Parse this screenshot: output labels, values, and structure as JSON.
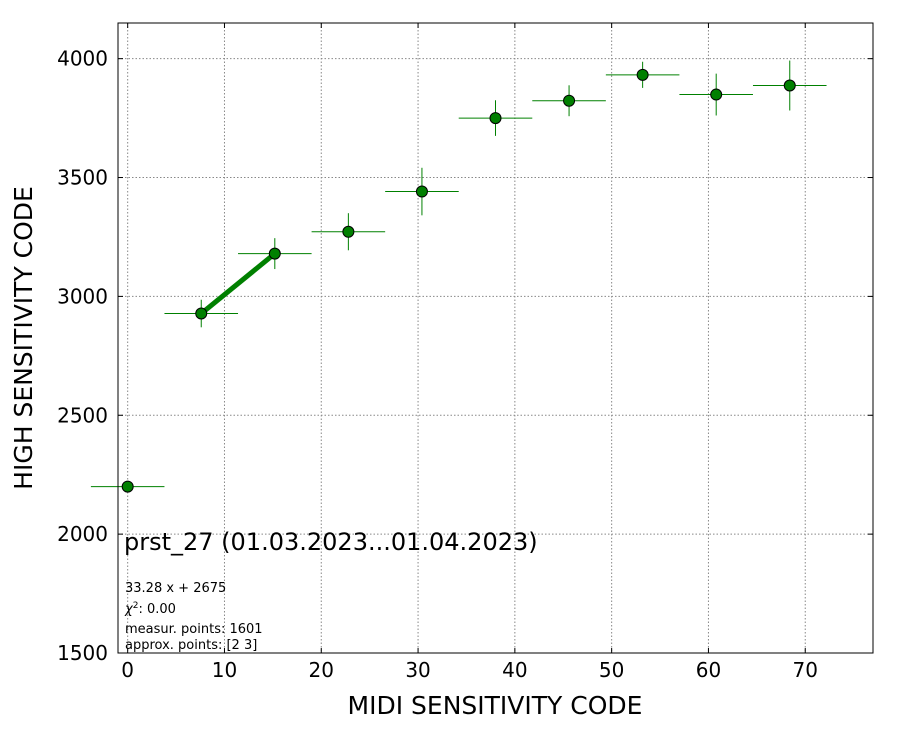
{
  "chart_data": {
    "type": "scatter",
    "xlabel": "MIDI SENSITIVITY CODE",
    "ylabel": "HIGH SENSITIVITY CODE",
    "xlim": [
      -1,
      77
    ],
    "ylim": [
      1500,
      4150
    ],
    "xticks": [
      0,
      10,
      20,
      30,
      40,
      50,
      60,
      70
    ],
    "yticks": [
      1500,
      2000,
      2500,
      3000,
      3500,
      4000
    ],
    "grid": true,
    "points": [
      {
        "x": 0.0,
        "y": 2200,
        "xerr": 3.8,
        "yerr": 0
      },
      {
        "x": 7.6,
        "y": 2928,
        "xerr": 3.8,
        "yerr": 58
      },
      {
        "x": 15.2,
        "y": 3180,
        "xerr": 3.8,
        "yerr": 65
      },
      {
        "x": 22.8,
        "y": 3272,
        "xerr": 3.8,
        "yerr": 78
      },
      {
        "x": 30.4,
        "y": 3441,
        "xerr": 3.8,
        "yerr": 100
      },
      {
        "x": 38.0,
        "y": 3750,
        "xerr": 3.8,
        "yerr": 75
      },
      {
        "x": 45.6,
        "y": 3823,
        "xerr": 3.8,
        "yerr": 65
      },
      {
        "x": 53.2,
        "y": 3932,
        "xerr": 3.8,
        "yerr": 55
      },
      {
        "x": 60.8,
        "y": 3849,
        "xerr": 3.8,
        "yerr": 88
      },
      {
        "x": 68.4,
        "y": 3887,
        "xerr": 3.8,
        "yerr": 105
      }
    ],
    "fit_line": {
      "x": [
        7.6,
        15.2
      ],
      "y": [
        2928,
        3180
      ]
    },
    "colors": {
      "marker": "#008000",
      "marker_edge": "#000000",
      "errorbar": "#008000",
      "fit": "#008000"
    },
    "annotations": {
      "title": "prst_27 (01.03.2023...01.04.2023)",
      "equation": "33.28 x + 2675",
      "chi2_prefix": "χ",
      "chi2_sup": "2",
      "chi2_value": ": 0.00",
      "measur_points": "measur. points: 1601",
      "approx_points": "approx. points: [2 3]"
    }
  }
}
